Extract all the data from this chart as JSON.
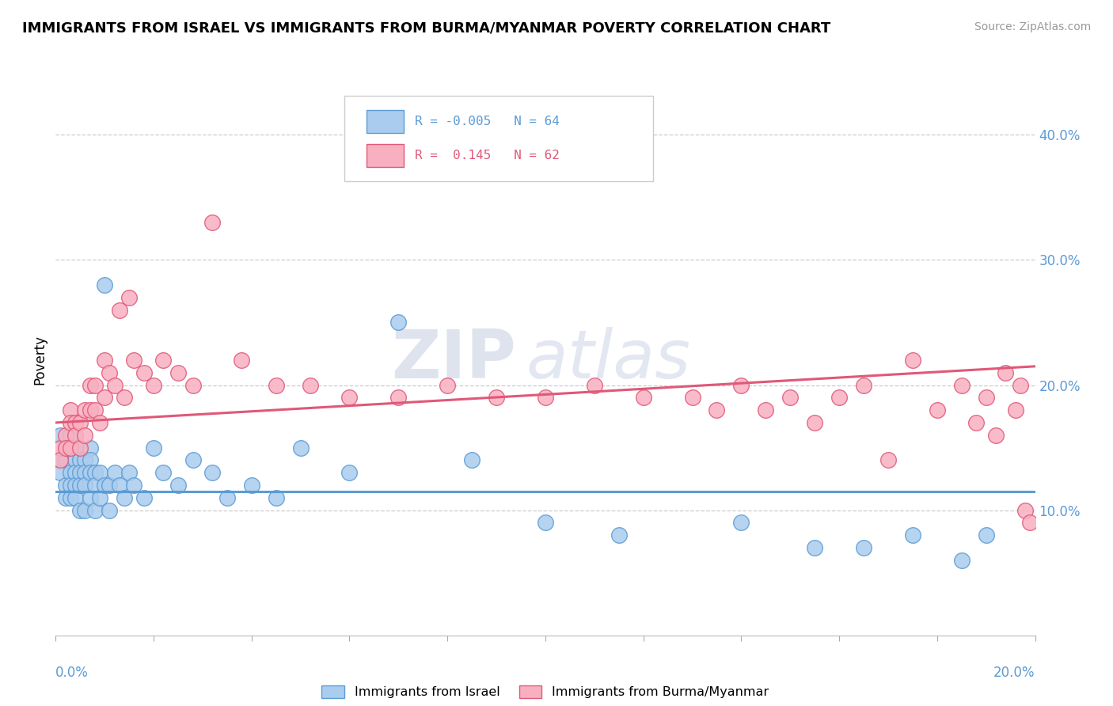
{
  "title": "IMMIGRANTS FROM ISRAEL VS IMMIGRANTS FROM BURMA/MYANMAR POVERTY CORRELATION CHART",
  "source": "Source: ZipAtlas.com",
  "ylabel": "Poverty",
  "y_ticks": [
    0.1,
    0.2,
    0.3,
    0.4
  ],
  "y_tick_labels": [
    "10.0%",
    "20.0%",
    "30.0%",
    "40.0%"
  ],
  "xlim": [
    0.0,
    0.2
  ],
  "ylim": [
    0.0,
    0.44
  ],
  "color_israel": "#aaccee",
  "color_burma": "#f8b0c0",
  "color_israel_line": "#5b9bd5",
  "color_burma_line": "#e05878",
  "watermark_zip": "ZIP",
  "watermark_atlas": "atlas",
  "israel_trend_y0": 0.115,
  "israel_trend_y1": 0.115,
  "burma_trend_y0": 0.17,
  "burma_trend_y1": 0.215,
  "israel_x": [
    0.001,
    0.001,
    0.001,
    0.002,
    0.002,
    0.002,
    0.002,
    0.003,
    0.003,
    0.003,
    0.003,
    0.003,
    0.004,
    0.004,
    0.004,
    0.004,
    0.004,
    0.005,
    0.005,
    0.005,
    0.005,
    0.006,
    0.006,
    0.006,
    0.006,
    0.007,
    0.007,
    0.007,
    0.007,
    0.008,
    0.008,
    0.008,
    0.009,
    0.009,
    0.01,
    0.01,
    0.011,
    0.011,
    0.012,
    0.013,
    0.014,
    0.015,
    0.016,
    0.018,
    0.02,
    0.022,
    0.025,
    0.028,
    0.032,
    0.035,
    0.04,
    0.045,
    0.05,
    0.06,
    0.07,
    0.085,
    0.1,
    0.115,
    0.14,
    0.155,
    0.165,
    0.175,
    0.185,
    0.19
  ],
  "israel_y": [
    0.16,
    0.14,
    0.13,
    0.15,
    0.14,
    0.12,
    0.11,
    0.16,
    0.15,
    0.13,
    0.12,
    0.11,
    0.15,
    0.14,
    0.13,
    0.12,
    0.11,
    0.14,
    0.13,
    0.12,
    0.1,
    0.14,
    0.13,
    0.12,
    0.1,
    0.15,
    0.14,
    0.13,
    0.11,
    0.13,
    0.12,
    0.1,
    0.13,
    0.11,
    0.28,
    0.12,
    0.12,
    0.1,
    0.13,
    0.12,
    0.11,
    0.13,
    0.12,
    0.11,
    0.15,
    0.13,
    0.12,
    0.14,
    0.13,
    0.11,
    0.12,
    0.11,
    0.15,
    0.13,
    0.25,
    0.14,
    0.09,
    0.08,
    0.09,
    0.07,
    0.07,
    0.08,
    0.06,
    0.08
  ],
  "burma_x": [
    0.001,
    0.001,
    0.002,
    0.002,
    0.003,
    0.003,
    0.003,
    0.004,
    0.004,
    0.005,
    0.005,
    0.006,
    0.006,
    0.007,
    0.007,
    0.008,
    0.008,
    0.009,
    0.01,
    0.01,
    0.011,
    0.012,
    0.013,
    0.014,
    0.015,
    0.016,
    0.018,
    0.02,
    0.022,
    0.025,
    0.028,
    0.032,
    0.038,
    0.045,
    0.052,
    0.06,
    0.07,
    0.08,
    0.09,
    0.1,
    0.11,
    0.12,
    0.13,
    0.135,
    0.14,
    0.145,
    0.15,
    0.155,
    0.16,
    0.165,
    0.17,
    0.175,
    0.18,
    0.185,
    0.188,
    0.19,
    0.192,
    0.194,
    0.196,
    0.197,
    0.198,
    0.199
  ],
  "burma_y": [
    0.15,
    0.14,
    0.16,
    0.15,
    0.18,
    0.17,
    0.15,
    0.17,
    0.16,
    0.17,
    0.15,
    0.18,
    0.16,
    0.2,
    0.18,
    0.2,
    0.18,
    0.17,
    0.22,
    0.19,
    0.21,
    0.2,
    0.26,
    0.19,
    0.27,
    0.22,
    0.21,
    0.2,
    0.22,
    0.21,
    0.2,
    0.33,
    0.22,
    0.2,
    0.2,
    0.19,
    0.19,
    0.2,
    0.19,
    0.19,
    0.2,
    0.19,
    0.19,
    0.18,
    0.2,
    0.18,
    0.19,
    0.17,
    0.19,
    0.2,
    0.14,
    0.22,
    0.18,
    0.2,
    0.17,
    0.19,
    0.16,
    0.21,
    0.18,
    0.2,
    0.1,
    0.09
  ]
}
